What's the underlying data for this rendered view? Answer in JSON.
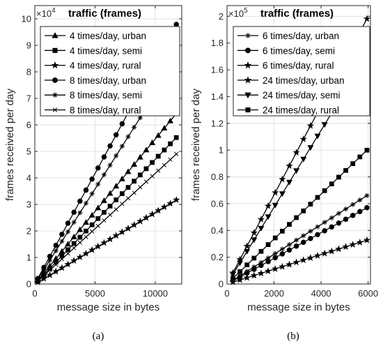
{
  "chart_data": [
    {
      "panel_label": "(a)",
      "type": "line",
      "title": "traffic (frames)",
      "exponent": "4",
      "xlabel": "message size in bytes",
      "ylabel": "frames received per day",
      "xlim": [
        0,
        12200
      ],
      "ylim": [
        0,
        10.5
      ],
      "xticks": [
        0,
        5000,
        10000
      ],
      "xtick_labels": [
        "0",
        "5000",
        "10000"
      ],
      "yticks": [
        0,
        1,
        2,
        3,
        4,
        5,
        6,
        7,
        8,
        9,
        10
      ],
      "ytick_labels": [
        "0",
        "1",
        "2",
        "3",
        "4",
        "5",
        "6",
        "7",
        "8",
        "9",
        "10"
      ],
      "grid": true,
      "legend_position": "top-left",
      "series": [
        {
          "name": "4 times/day, urban",
          "marker": "triangle",
          "slope": 0.0005467,
          "start": 250,
          "end": 12000,
          "step": 500
        },
        {
          "name": "4 times/day, semi",
          "marker": "square",
          "slope": 0.00047,
          "start": 250,
          "end": 12000,
          "step": 500
        },
        {
          "name": "4 times/day, rural",
          "marker": "star",
          "slope": 0.00027,
          "start": 250,
          "end": 12000,
          "step": 500
        },
        {
          "name": "8 times/day, urban",
          "marker": "circle",
          "slope": 0.0008333,
          "start": 250,
          "end": 12000,
          "step": 500
        },
        {
          "name": "8 times/day, semi",
          "marker": "asterisk",
          "slope": 0.0007167,
          "start": 250,
          "end": 12000,
          "step": 500
        },
        {
          "name": "8 times/day, rural",
          "marker": "x",
          "slope": 0.000417,
          "start": 250,
          "end": 12000,
          "step": 500
        }
      ]
    },
    {
      "panel_label": "(b)",
      "type": "line",
      "title": "traffic (frames)",
      "exponent": "5",
      "xlabel": "message size in bytes",
      "ylabel": "frames received per day",
      "xlim": [
        0,
        6100
      ],
      "ylim": [
        0,
        2.08
      ],
      "xticks": [
        0,
        2000,
        4000,
        6000
      ],
      "xtick_labels": [
        "0",
        "2000",
        "4000",
        "6000"
      ],
      "yticks": [
        0,
        0.2,
        0.4,
        0.6,
        0.8,
        1,
        1.2,
        1.4,
        1.6,
        1.8,
        2
      ],
      "ytick_labels": [
        "0",
        "0.2",
        "0.4",
        "0.6",
        "0.8",
        "1",
        "1.2",
        "1.4",
        "1.6",
        "1.8",
        "2"
      ],
      "grid": true,
      "legend_position": "top-left",
      "series": [
        {
          "name": "6 times/day, urban",
          "marker": "asterisk",
          "slope": 0.000111,
          "start": 250,
          "end": 6000,
          "step": 300
        },
        {
          "name": "6 times/day, semi",
          "marker": "circle",
          "slope": 9.58e-05,
          "start": 250,
          "end": 6000,
          "step": 300
        },
        {
          "name": "6 times/day, rural",
          "marker": "star",
          "slope": 5.5e-05,
          "start": 250,
          "end": 6000,
          "step": 300
        },
        {
          "name": "24 times/day, urban",
          "marker": "star",
          "slope": 0.000333,
          "start": 250,
          "end": 6000,
          "step": 300
        },
        {
          "name": "24 times/day, semi",
          "marker": "triangle-down",
          "slope": 0.000287,
          "start": 250,
          "end": 6000,
          "step": 300
        },
        {
          "name": "24 times/day, rural",
          "marker": "square",
          "slope": 0.000168,
          "start": 250,
          "end": 6000,
          "step": 300
        }
      ]
    }
  ]
}
